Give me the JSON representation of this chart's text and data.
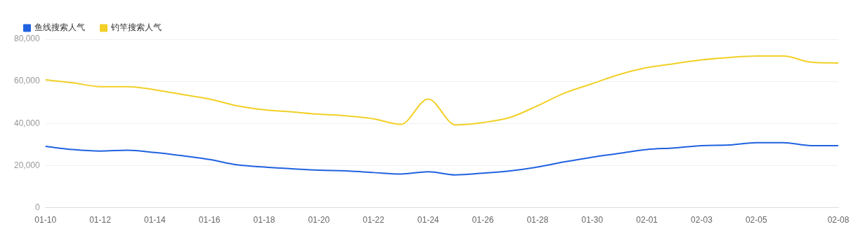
{
  "chart_data": {
    "type": "line",
    "categories": [
      "01-10",
      null,
      "01-12",
      null,
      "01-14",
      null,
      "01-16",
      null,
      "01-18",
      null,
      "01-20",
      null,
      "01-22",
      null,
      "01-24",
      null,
      "01-26",
      null,
      "01-28",
      null,
      "01-30",
      null,
      "02-01",
      null,
      "02-03",
      null,
      "02-05",
      null,
      null,
      "02-08"
    ],
    "series": [
      {
        "name": "鱼线搜索人气",
        "color": "#2062e0",
        "values": [
          29100,
          27600,
          26900,
          27300,
          26200,
          24700,
          22900,
          20400,
          19300,
          18500,
          17800,
          17500,
          16700,
          16000,
          17100,
          15600,
          16400,
          17500,
          19300,
          21800,
          24000,
          25800,
          27600,
          28400,
          29500,
          29800,
          30900,
          30900,
          29500,
          29500
        ]
      },
      {
        "name": "钓竿搜索人气",
        "color": "#f2d027",
        "values": [
          60700,
          59300,
          57500,
          57500,
          56000,
          53800,
          51600,
          48400,
          46500,
          45500,
          44400,
          43600,
          42200,
          39600,
          51600,
          39300,
          40400,
          42900,
          48400,
          54500,
          58900,
          63300,
          66500,
          68400,
          70200,
          71300,
          72000,
          72000,
          69100,
          68700
        ]
      }
    ],
    "ylim": [
      0,
      80000
    ],
    "yticks": [
      {
        "value": 0,
        "label": "0"
      },
      {
        "value": 20000,
        "label": "20,000"
      },
      {
        "value": 40000,
        "label": "40,000"
      },
      {
        "value": 60000,
        "label": "60,000"
      },
      {
        "value": 80000,
        "label": "80,000"
      }
    ],
    "grid": "y",
    "legend": "top left",
    "marker": "none",
    "line_style": "solid"
  }
}
